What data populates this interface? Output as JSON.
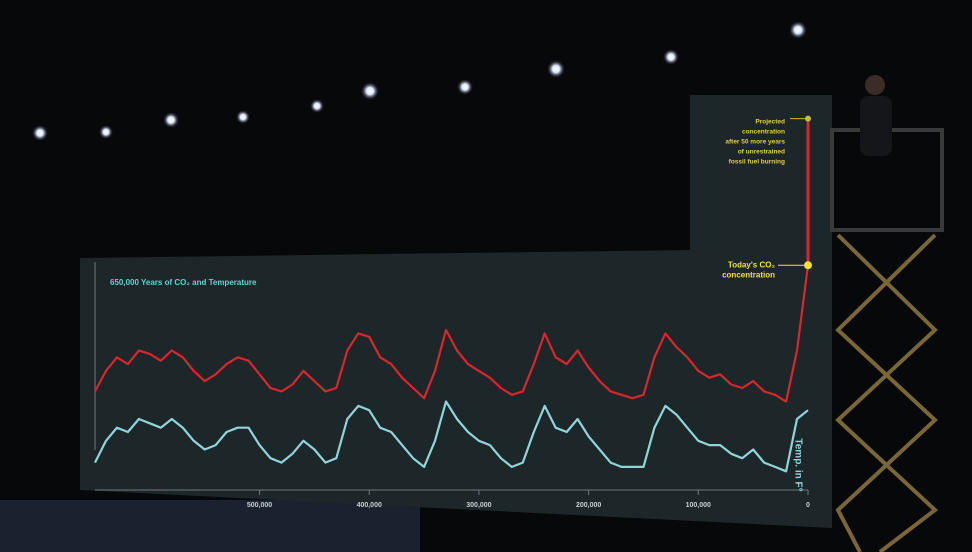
{
  "chart_data": {
    "type": "line",
    "title": "650,000 Years of CO₂ and Temperature",
    "x": [
      650000,
      640000,
      630000,
      620000,
      610000,
      600000,
      590000,
      580000,
      570000,
      560000,
      550000,
      540000,
      530000,
      520000,
      510000,
      500000,
      490000,
      480000,
      470000,
      460000,
      450000,
      440000,
      430000,
      420000,
      410000,
      400000,
      390000,
      380000,
      370000,
      360000,
      350000,
      340000,
      330000,
      320000,
      310000,
      300000,
      290000,
      280000,
      270000,
      260000,
      250000,
      240000,
      230000,
      220000,
      210000,
      200000,
      190000,
      180000,
      170000,
      160000,
      150000,
      140000,
      130000,
      120000,
      110000,
      100000,
      90000,
      80000,
      70000,
      60000,
      50000,
      40000,
      30000,
      20000,
      10000,
      0
    ],
    "series": [
      {
        "color": "#d9262c",
        "values": [
          200,
          230,
          250,
          240,
          260,
          255,
          245,
          260,
          250,
          230,
          215,
          225,
          240,
          250,
          245,
          225,
          205,
          200,
          210,
          230,
          215,
          200,
          205,
          260,
          285,
          280,
          250,
          240,
          220,
          205,
          190,
          230,
          290,
          260,
          240,
          230,
          220,
          205,
          195,
          200,
          240,
          285,
          250,
          240,
          260,
          235,
          215,
          200,
          195,
          190,
          195,
          250,
          285,
          265,
          250,
          230,
          220,
          225,
          210,
          205,
          215,
          200,
          195,
          185,
          260,
          385
        ]
      },
      {
        "color": "#8fd6dc",
        "axis": "y2",
        "values": [
          -10,
          -5,
          -2,
          -3,
          0,
          -1,
          -2,
          0,
          -2,
          -5,
          -7,
          -6,
          -3,
          -2,
          -2,
          -6,
          -9,
          -10,
          -8,
          -5,
          -7,
          -10,
          -9,
          0,
          3,
          2,
          -2,
          -3,
          -6,
          -9,
          -11,
          -5,
          4,
          0,
          -3,
          -5,
          -6,
          -9,
          -11,
          -10,
          -3,
          3,
          -2,
          -3,
          0,
          -4,
          -7,
          -10,
          -11,
          -11,
          -11,
          -2,
          3,
          1,
          -2,
          -5,
          -6,
          -6,
          -8,
          -9,
          -7,
          -10,
          -11,
          -12,
          0,
          2
        ]
      }
    ],
    "xlim": [
      650000,
      0
    ],
    "xticks": [
      {
        "value": 500000,
        "label": "500,000"
      },
      {
        "value": 400000,
        "label": "400,000"
      },
      {
        "value": 300000,
        "label": "300,000"
      },
      {
        "value": 200000,
        "label": "200,000"
      },
      {
        "value": 100000,
        "label": "100,000"
      },
      0
    ],
    "ylim": [
      70,
      620
    ],
    "y2lim": [
      -14,
      72
    ],
    "y2label": "Temp. in F°",
    "today": {
      "lines": [
        "Today's CO₂",
        "concentration"
      ]
    },
    "projection": {
      "value": 600,
      "lines": [
        "Projected",
        "concentration",
        "after 50 more years",
        "of unrestrained",
        "fossil fuel burning"
      ]
    }
  }
}
